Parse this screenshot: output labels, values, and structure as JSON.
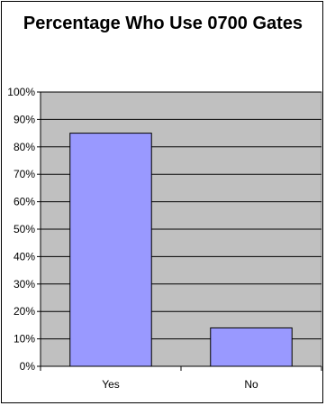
{
  "chart_data": {
    "type": "bar",
    "title": "Percentage Who Use 0700 Gates",
    "categories": [
      "Yes",
      "No"
    ],
    "values": [
      85,
      14
    ],
    "ylim": [
      0,
      100
    ],
    "yticks": [
      "0%",
      "10%",
      "20%",
      "30%",
      "40%",
      "50%",
      "60%",
      "70%",
      "80%",
      "90%",
      "100%"
    ],
    "grid": true,
    "legend": "none",
    "colors": {
      "bar": "#9999ff",
      "plot_bg": "#c0c0c0",
      "gridline": "#000000"
    }
  }
}
